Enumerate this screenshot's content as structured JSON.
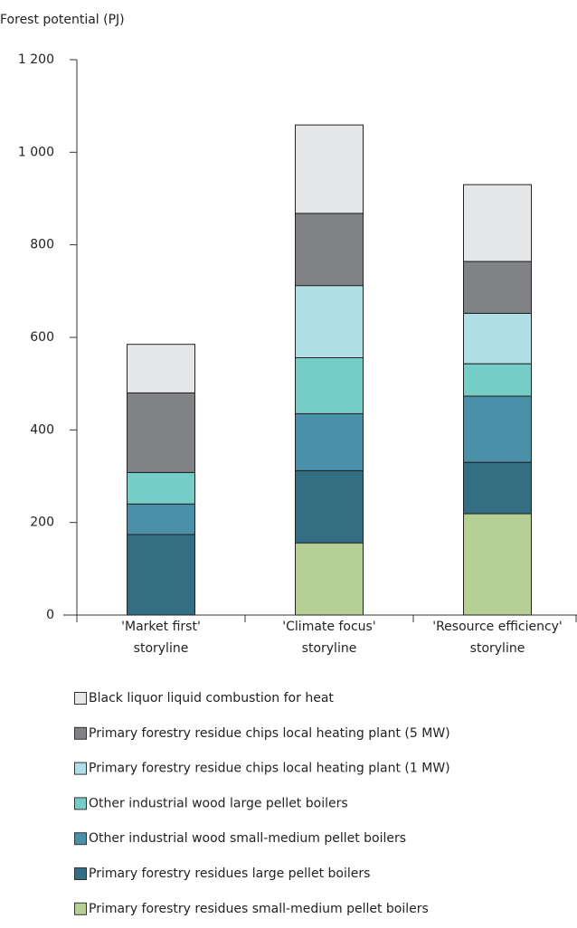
{
  "chart_data": {
    "type": "stacked_bar",
    "y_label": "Forest potential (PJ)",
    "categories": [
      [
        "'Market first'",
        "storyline"
      ],
      [
        "'Climate focus'",
        "storyline"
      ],
      [
        "'Resource efficiency'",
        "storyline"
      ]
    ],
    "ylim": [
      0,
      1200
    ],
    "yticks": [
      0,
      200,
      400,
      600,
      800,
      {
        "value": 1000,
        "label": "1 000"
      },
      {
        "value": 1200,
        "label": "1 200"
      }
    ],
    "series": [
      {
        "name": "Primary forestry residues small-medium pellet boilers",
        "color": "#b6cf94",
        "values": [
          0,
          156,
          219
        ]
      },
      {
        "name": "Primary forestry residues large pellet boilers",
        "color": "#346e82",
        "values": [
          174,
          156,
          111
        ]
      },
      {
        "name": "Other industrial wood small-medium pellet boilers",
        "color": "#4a90a8",
        "values": [
          66,
          123,
          143
        ]
      },
      {
        "name": "Other industrial wood large pellet boilers",
        "color": "#76cdc7",
        "values": [
          68,
          121,
          70
        ]
      },
      {
        "name": "Primary forestry residue chips local heating plant (1 MW)",
        "color": "#b0e0e6",
        "values": [
          0,
          156,
          109
        ]
      },
      {
        "name": "Primary forestry residue chips local heating plant (5 MW)",
        "color": "#808285",
        "values": [
          172,
          156,
          112
        ]
      },
      {
        "name": "Black liquor liquid combustion for heat",
        "color": "#e6e7e8",
        "values": [
          105,
          191,
          166
        ]
      }
    ]
  }
}
